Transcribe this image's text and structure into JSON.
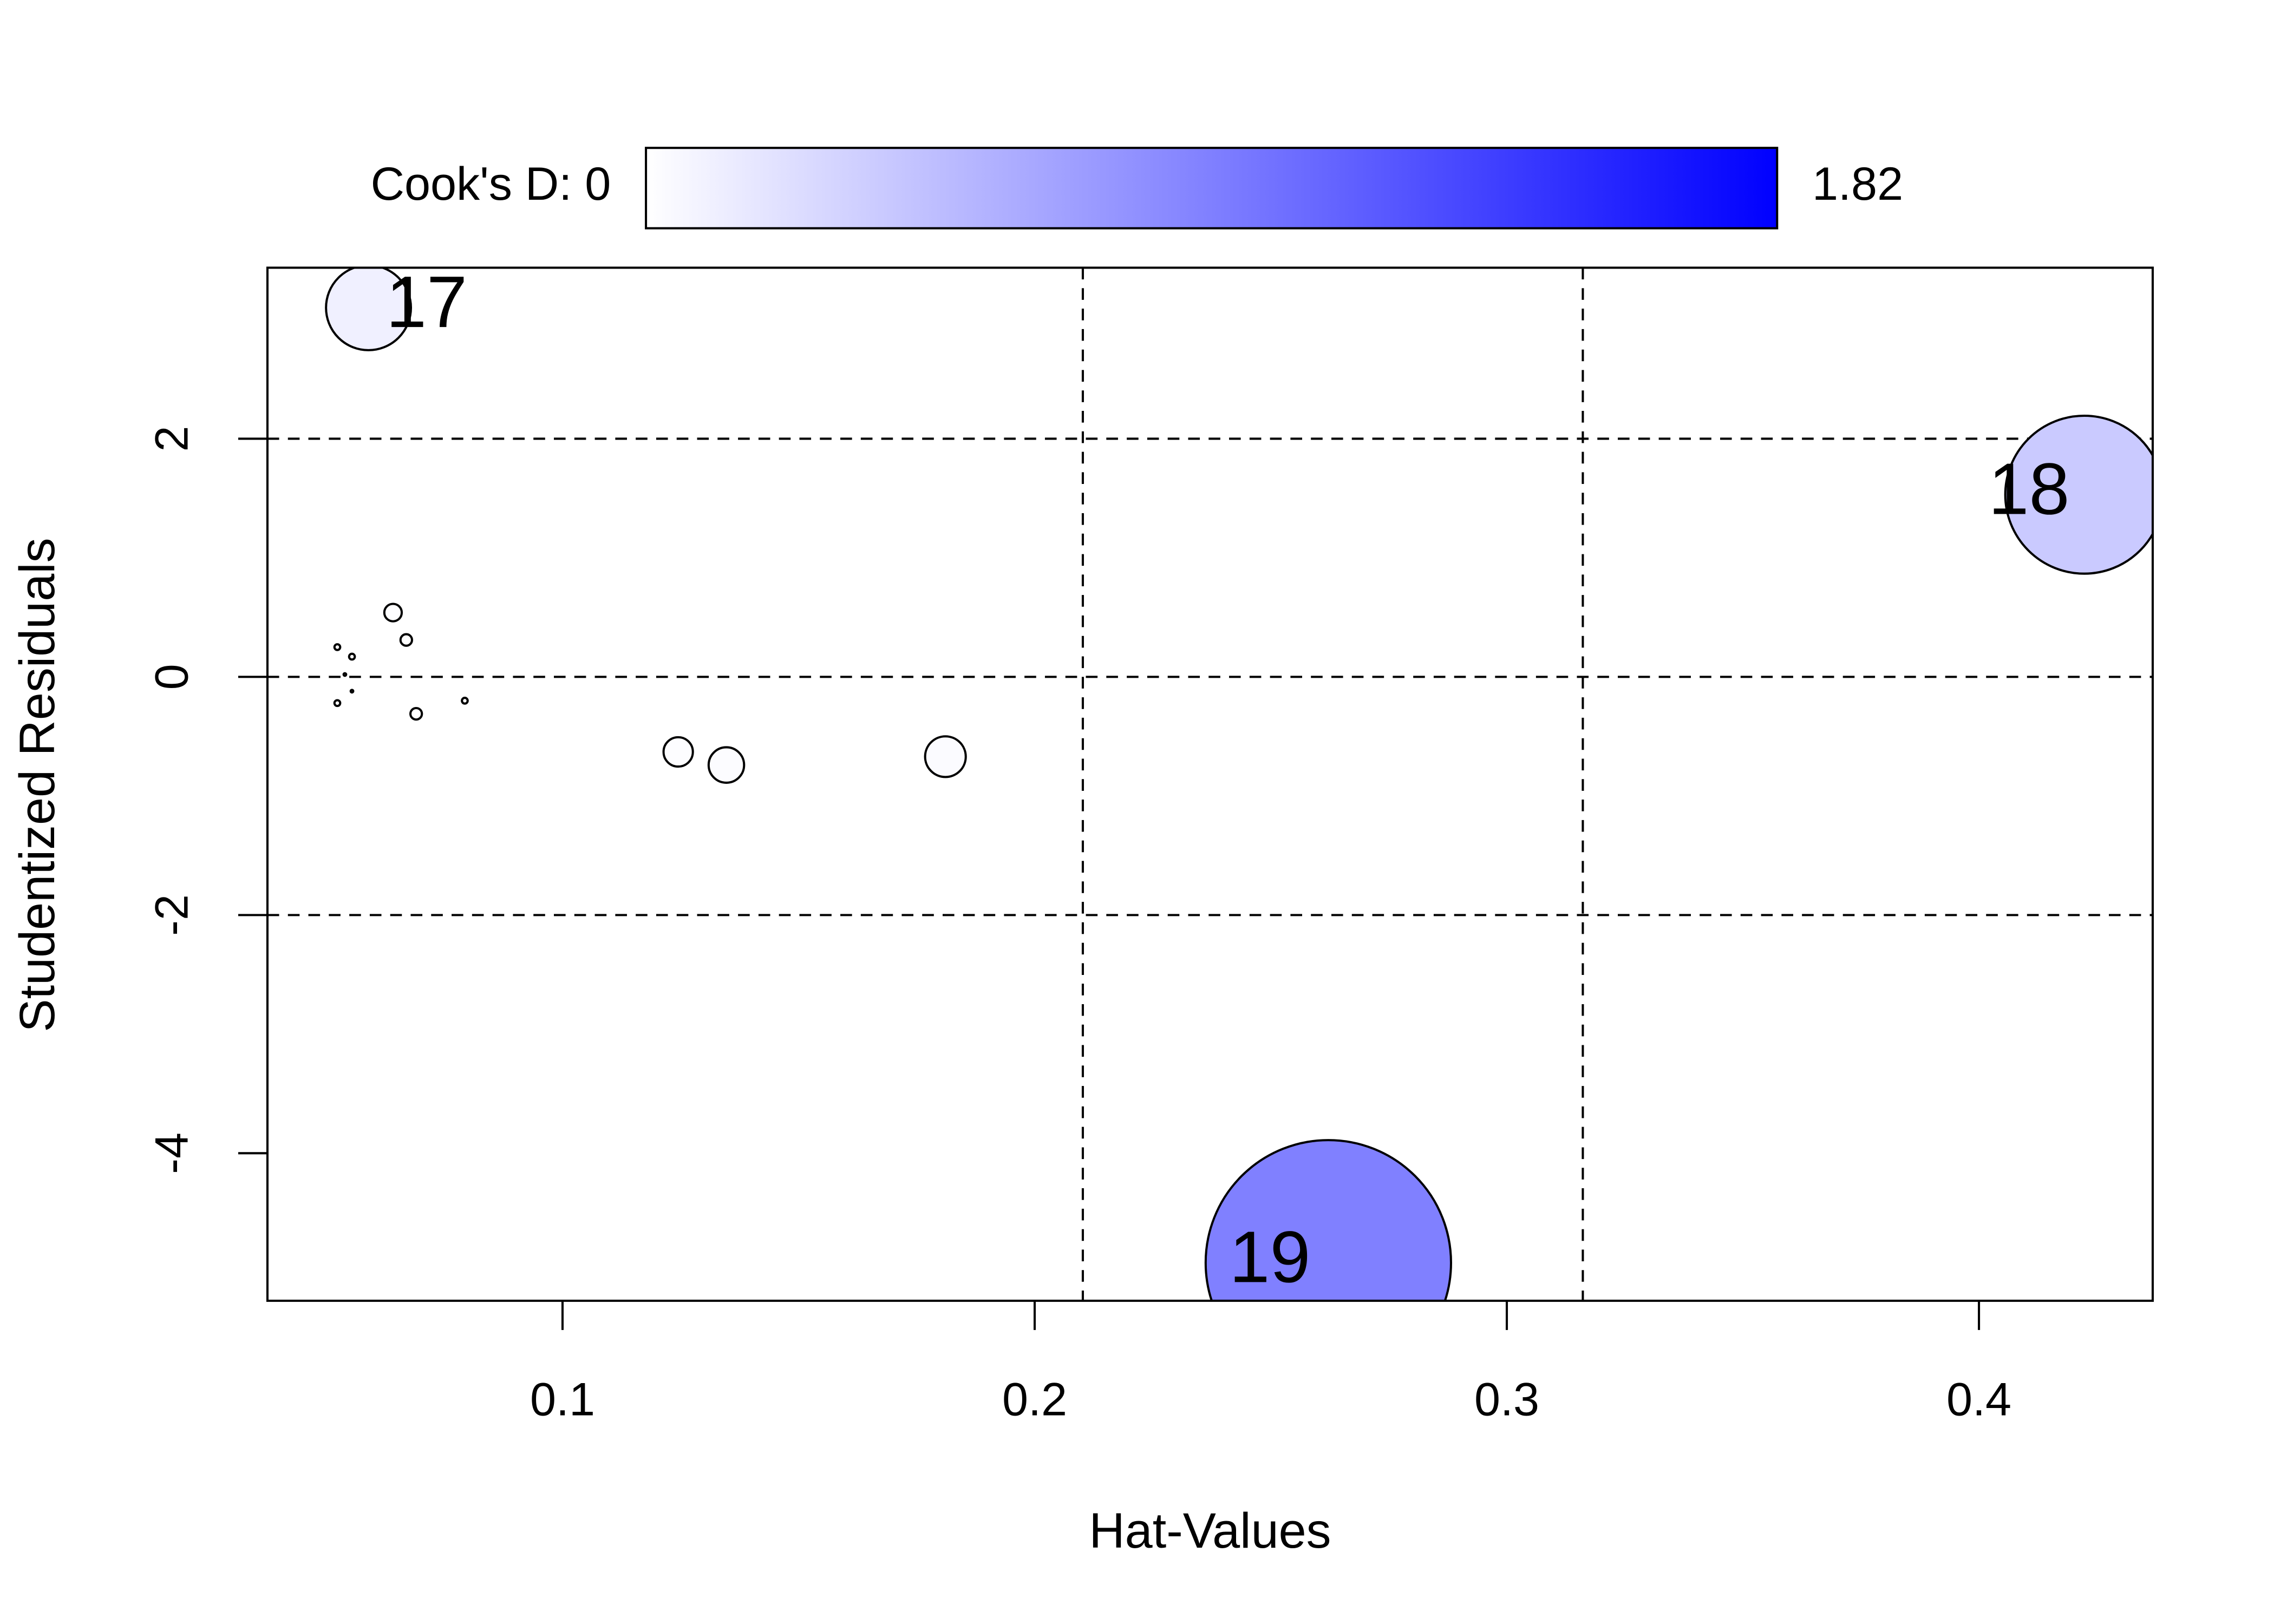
{
  "chart_data": {
    "type": "bubble",
    "xlabel": "Hat-Values",
    "ylabel": "Studentized Residuals",
    "xlim": [
      0.0375,
      0.4368
    ],
    "ylim": [
      -5.239,
      3.436
    ],
    "xticks": [
      0.1,
      0.2,
      0.3,
      0.4
    ],
    "yticks": [
      -4,
      -2,
      0,
      2
    ],
    "reference_x": [
      0.2102,
      0.3161
    ],
    "reference_y": [
      -2,
      0,
      2
    ],
    "colorbar": {
      "label": "Cook's D:",
      "range": [
        0,
        1.82
      ],
      "colors": [
        "#ffffff",
        "#0000ff"
      ]
    },
    "x": [
      0.0589,
      0.4223,
      0.2622,
      0.0641,
      0.0669,
      0.0523,
      0.0554,
      0.0523,
      0.0554,
      0.069,
      0.0793,
      0.0539,
      0.1245,
      0.1347,
      0.1811
    ],
    "values": [
      3.1,
      1.53,
      -4.92,
      0.54,
      0.31,
      0.25,
      0.17,
      -0.22,
      -0.12,
      -0.31,
      -0.2,
      0.02,
      -0.63,
      -0.74,
      -0.67
    ],
    "sizes": [
      0.109,
      0.377,
      0.91,
      0.0046,
      0.002,
      0.0005,
      0.0005,
      0.0005,
      0.0001,
      0.002,
      0.0005,
      0.0001,
      0.013,
      0.019,
      0.025
    ],
    "point_labels": [
      "17",
      "18",
      "19",
      null,
      null,
      null,
      null,
      null,
      null,
      null,
      null,
      null,
      null,
      null,
      null
    ]
  }
}
